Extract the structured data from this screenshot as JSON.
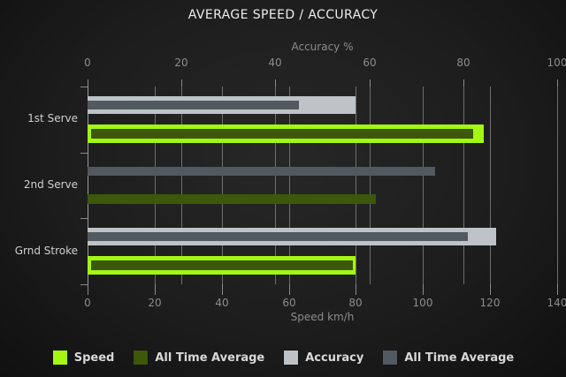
{
  "chart_data": {
    "type": "bar",
    "orientation": "horizontal",
    "title": "AVERAGE SPEED / ACCURACY",
    "categories": [
      "1st Serve",
      "2nd Serve",
      "Grnd Stroke"
    ],
    "axes": {
      "top": {
        "label": "Accuracy %",
        "min": 0,
        "max": 100,
        "ticks": [
          0,
          20,
          40,
          60,
          80,
          100
        ]
      },
      "bottom": {
        "label": "Speed km/h",
        "min": 0,
        "max": 140,
        "ticks": [
          0,
          20,
          40,
          60,
          80,
          100,
          120,
          140
        ]
      }
    },
    "series": [
      {
        "name": "Speed",
        "axis": "bottom",
        "role": "current",
        "color": "#a4f613",
        "values": [
          118,
          null,
          80
        ]
      },
      {
        "name": "All Time Average",
        "axis": "bottom",
        "role": "average",
        "color": "#3d570b",
        "values": [
          115,
          86,
          79
        ]
      },
      {
        "name": "Accuracy",
        "axis": "top",
        "role": "current",
        "color": "#bdc3c6",
        "values": [
          57,
          null,
          87
        ]
      },
      {
        "name": "All Time Average",
        "axis": "top",
        "role": "average",
        "color": "#535960",
        "values": [
          45,
          74,
          81
        ]
      }
    ],
    "legend": [
      "Speed",
      "All Time Average",
      "Accuracy",
      "All Time Average"
    ],
    "legend_position": "bottom",
    "grid": true
  },
  "style": {
    "background_center": "#272727",
    "background_edge": "#101010",
    "grid_color": "#6e6e6e",
    "axis_zero_color": "#9a9a9a",
    "tick_text_color": "#8c8c8c",
    "category_text_color": "#cfcfcf",
    "title_text_color": "#ededed",
    "legend_text_color": "#d8d8d8"
  }
}
